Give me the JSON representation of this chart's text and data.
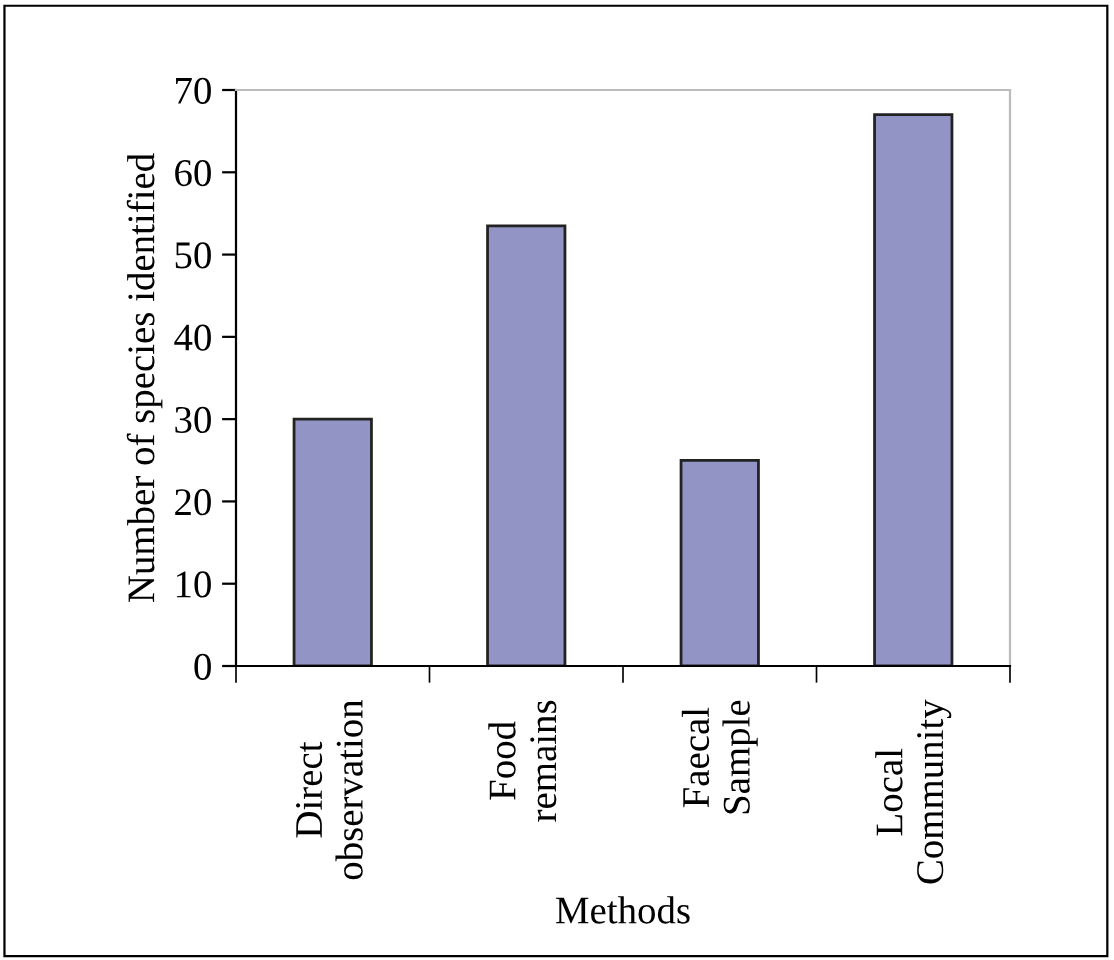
{
  "chart_data": {
    "type": "bar",
    "xlabel": "Methods",
    "ylabel": "Number of species identified",
    "categories": [
      "Direct\nobservation",
      "Food\nremains",
      "Faecal\nSample",
      "Local\nCommunity"
    ],
    "values": [
      30,
      53.5,
      25,
      67
    ],
    "color": "#9394c6",
    "ylim": [
      0,
      70
    ],
    "yticks": [
      0,
      10,
      20,
      30,
      40,
      50,
      60,
      70
    ],
    "grid": false,
    "legend": false
  }
}
